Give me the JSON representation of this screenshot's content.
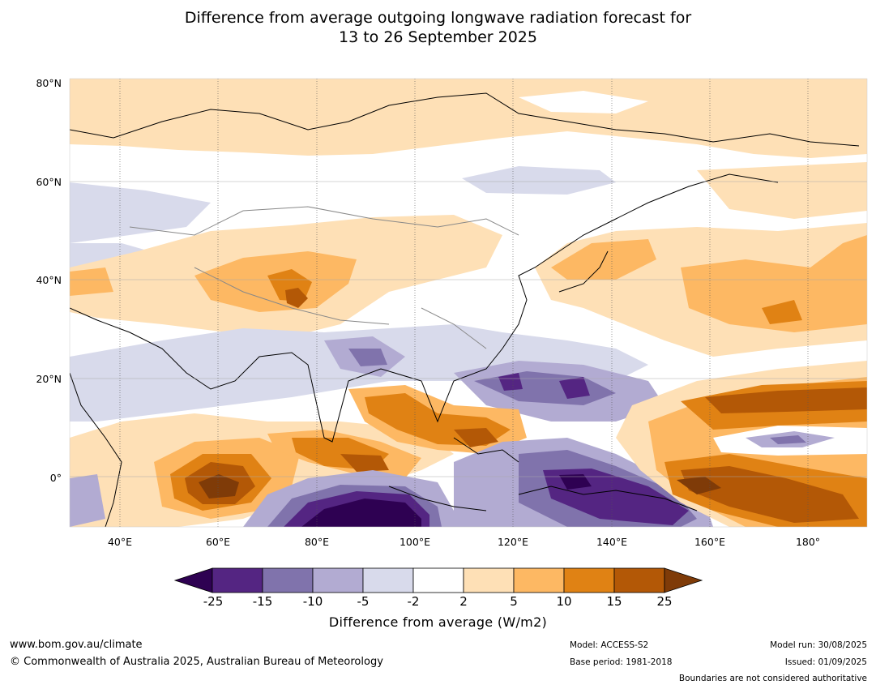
{
  "title": {
    "line1": "Difference from average outgoing longwave radiation forecast for",
    "line2": "13 to 26 September 2025"
  },
  "map": {
    "lat_labels": [
      "80°N",
      "60°N",
      "40°N",
      "20°N",
      "0°"
    ],
    "lon_labels": [
      "40°E",
      "60°E",
      "80°E",
      "100°E",
      "120°E",
      "140°E",
      "160°E",
      "180°"
    ]
  },
  "colorbar": {
    "ticks": [
      "-25",
      "-15",
      "-10",
      "-5",
      "-2",
      "2",
      "5",
      "10",
      "15",
      "25"
    ],
    "colors": [
      "#2e0152",
      "#542582",
      "#8073ac",
      "#b2abd2",
      "#d8daeb",
      "#ffffff",
      "#fee0b6",
      "#fdb863",
      "#e08214",
      "#b35806",
      "#7f3b08"
    ],
    "label": "Difference from average (W/m2)"
  },
  "footer": {
    "website": "www.bom.gov.au/climate",
    "copyright": "© Commonwealth of Australia 2025, Australian Bureau of Meteorology",
    "model": "Model: ACCESS-S2",
    "base_period": "Base period: 1981-2018",
    "model_run": "Model run: 30/08/2025",
    "issued": "Issued: 01/09/2025",
    "disclaimer": "Boundaries are not considered authoritative"
  }
}
